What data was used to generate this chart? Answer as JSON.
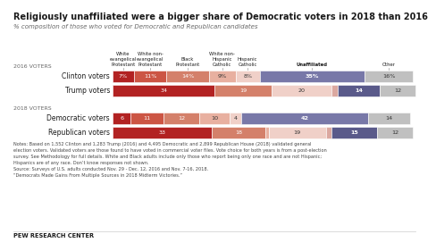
{
  "title": "Religiously unaffiliated were a bigger share of Democratic voters in 2018 than 2016",
  "subtitle": "% composition of those who voted for Democratic and Republican candidates",
  "bg_color": "#ffffff",
  "title_color": "#1a1a1a",
  "subtitle_color": "#666666",
  "colors": {
    "white_evan": "#b22222",
    "white_non_evan": "#cc5544",
    "black_protestant": "#d4806a",
    "white_nh_catholic": "#e8b0a0",
    "hispanic_catholic": "#f0d0c8",
    "unaffiliated": "#7878a8",
    "dark_purple": "#5a5a8a",
    "other": "#c0c0c0",
    "small_pink": "#dba8a0"
  },
  "clinton_segs": [
    [
      7,
      "#b22222"
    ],
    [
      11,
      "#cc5544"
    ],
    [
      14,
      "#d4806a"
    ],
    [
      9,
      "#e8b0a0"
    ],
    [
      8,
      "#f0d0c8"
    ],
    [
      35,
      "#7878a8"
    ],
    [
      16,
      "#c0c0c0"
    ]
  ],
  "trump_segs": [
    [
      34,
      "#b22222"
    ],
    [
      19,
      "#d4806a"
    ],
    [
      20,
      "#f0d0c8"
    ],
    [
      2,
      "#dba8a0"
    ],
    [
      14,
      "#5a5a8a"
    ],
    [
      12,
      "#c0c0c0"
    ]
  ],
  "dem2018_segs": [
    [
      6,
      "#b22222"
    ],
    [
      11,
      "#cc5544"
    ],
    [
      12,
      "#d4806a"
    ],
    [
      10,
      "#e8b0a0"
    ],
    [
      4,
      "#f0d0c8"
    ],
    [
      42,
      "#7878a8"
    ],
    [
      14,
      "#c0c0c0"
    ]
  ],
  "rep2018_segs": [
    [
      33,
      "#b22222"
    ],
    [
      18,
      "#d4806a"
    ],
    [
      1,
      "#e8b0a0"
    ],
    [
      19,
      "#f0d0c8"
    ],
    [
      2,
      "#dba8a0"
    ],
    [
      15,
      "#5a5a8a"
    ],
    [
      12,
      "#c0c0c0"
    ]
  ],
  "clinton_labels": [
    "7%",
    "11%",
    "14%",
    "9%",
    "8%",
    "35%",
    "16%"
  ],
  "trump_labels": [
    "34",
    "",
    "19",
    "20",
    "2",
    "14",
    "12"
  ],
  "dem2018_labels": [
    "6",
    "11",
    "12",
    "10",
    "4",
    "42",
    "14"
  ],
  "rep2018_labels": [
    "33",
    "",
    "18",
    "1",
    "19",
    "2",
    "15",
    "12"
  ],
  "row_labels": [
    "Clinton voters",
    "Trump voters",
    "Democratic voters",
    "Republican voters"
  ],
  "group_labels": [
    "2016 VOTERS",
    "2018 VOTERS"
  ],
  "col_headers": [
    "White\nevangelical\nProtestant",
    "White non-\nevangelical\nProtestant",
    "Black\nProtestant",
    "White non-\nHispanic\nCatholic",
    "Hispanic\nCatholic",
    "Unaffiliated",
    "Other"
  ],
  "notes": "Notes: Based on 1,552 Clinton and 1,283 Trump (2016) and 4,495 Democratic and 2,899 Republican House (2018) validated general\nelecton voters. Validated voters are those found to have voted in commercial voter files. Vote choice for both years is from a post-election\nsurvey. See Methodology for full details. White and Black adults include only those who report being only one race and are not Hispanic;\nHispanics are of any race. Don’t know responses not shown.\nSource: Surveys of U.S. adults conducted Nov. 29 - Dec. 12, 2016 and Nov. 7-16, 2018.\n“Democrats Made Gains From Multiple Sources in 2018 Midterm Victories.”",
  "pew": "PEW RESEARCH CENTER"
}
